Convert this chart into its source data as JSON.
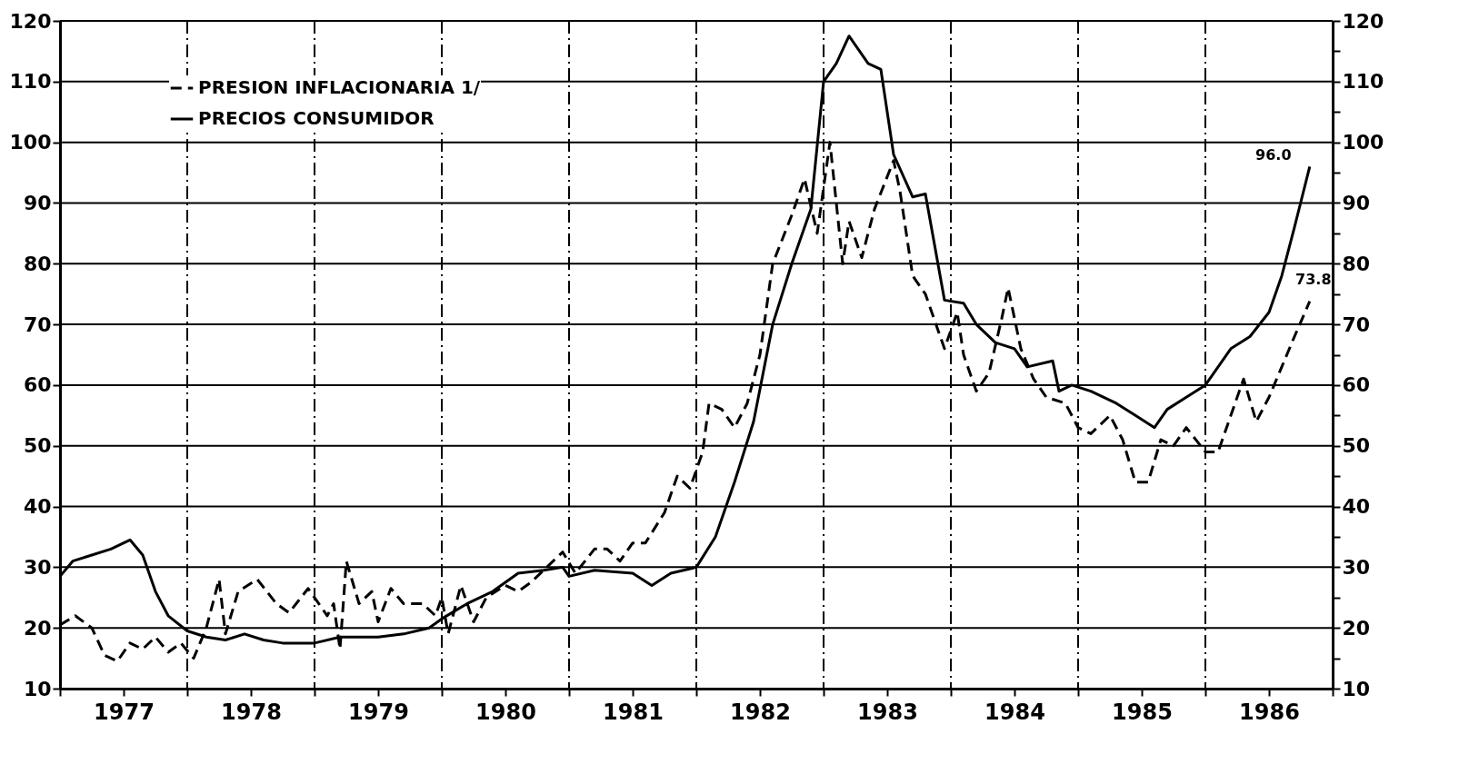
{
  "chart_data": {
    "type": "line",
    "xlim": [
      1977,
      1987
    ],
    "xticks": [
      {
        "value": 1977,
        "label": null
      },
      {
        "value": 1977.5,
        "label": "1977"
      },
      {
        "value": 1978,
        "label": null
      },
      {
        "value": 1978.5,
        "label": "1978"
      },
      {
        "value": 1979,
        "label": null
      },
      {
        "value": 1979.5,
        "label": "1979"
      },
      {
        "value": 1980,
        "label": null
      },
      {
        "value": 1980.5,
        "label": "1980"
      },
      {
        "value": 1981,
        "label": null
      },
      {
        "value": 1981.5,
        "label": "1981"
      },
      {
        "value": 1982,
        "label": null
      },
      {
        "value": 1982.5,
        "label": "1982"
      },
      {
        "value": 1983,
        "label": null
      },
      {
        "value": 1983.5,
        "label": "1983"
      },
      {
        "value": 1984,
        "label": null
      },
      {
        "value": 1984.5,
        "label": "1984"
      },
      {
        "value": 1985,
        "label": null
      },
      {
        "value": 1985.5,
        "label": "1985"
      },
      {
        "value": 1986,
        "label": null
      },
      {
        "value": 1986.5,
        "label": "1986"
      },
      {
        "value": 1987,
        "label": null
      }
    ],
    "ylim": [
      10,
      120
    ],
    "yticks": [
      10,
      {
        "value": 15,
        "label": null
      },
      20,
      {
        "value": 25,
        "label": null
      },
      30,
      {
        "value": 35,
        "label": null
      },
      40,
      {
        "value": 45,
        "label": null
      },
      50,
      {
        "value": 55,
        "label": null
      },
      60,
      {
        "value": 65,
        "label": null
      },
      70,
      {
        "value": 75,
        "label": null
      },
      80,
      {
        "value": 85,
        "label": null
      },
      90,
      {
        "value": 95,
        "label": null
      },
      100,
      {
        "value": 105,
        "label": null
      },
      110,
      {
        "value": 115,
        "label": null
      },
      120
    ],
    "y2lim": [
      10,
      120
    ],
    "y2ticks": [
      10,
      {
        "value": 15,
        "label": null
      },
      20,
      {
        "value": 25,
        "label": null
      },
      30,
      {
        "value": 35,
        "label": null
      },
      40,
      {
        "value": 45,
        "label": null
      },
      50,
      {
        "value": 55,
        "label": null
      },
      60,
      {
        "value": 65,
        "label": null
      },
      70,
      {
        "value": 75,
        "label": null
      },
      80,
      {
        "value": 85,
        "label": null
      },
      90,
      {
        "value": 95,
        "label": null
      },
      100,
      {
        "value": 105,
        "label": null
      },
      110,
      {
        "value": 115,
        "label": null
      },
      120
    ],
    "grid": true,
    "legend": "top left",
    "series": [
      {
        "name": "PRESION INFLACIONARIA 1/",
        "color": "#000000",
        "line_style": "dashed",
        "x": [
          1977.0,
          1977.12,
          1977.25,
          1977.35,
          1977.45,
          1977.55,
          1977.65,
          1977.75,
          1977.85,
          1977.95,
          1978.05,
          1978.15,
          1978.25,
          1978.3,
          1978.4,
          1978.55,
          1978.7,
          1978.8,
          1978.95,
          1979.1,
          1979.15,
          1979.2,
          1979.25,
          1979.35,
          1979.45,
          1979.5,
          1979.6,
          1979.7,
          1979.85,
          1979.95,
          1980.0,
          1980.05,
          1980.15,
          1980.25,
          1980.35,
          1980.5,
          1980.6,
          1980.7,
          1980.95,
          1981.05,
          1981.2,
          1981.3,
          1981.4,
          1981.5,
          1981.6,
          1981.75,
          1981.85,
          1981.95,
          1982.05,
          1982.1,
          1982.2,
          1982.3,
          1982.4,
          1982.5,
          1982.6,
          1982.75,
          1982.85,
          1982.95,
          1983.05,
          1983.15,
          1983.2,
          1983.3,
          1983.4,
          1983.55,
          1983.6,
          1983.7,
          1983.8,
          1983.95,
          1984.05,
          1984.1,
          1984.2,
          1984.3,
          1984.4,
          1984.45,
          1984.55,
          1984.65,
          1984.75,
          1984.9,
          1985.0,
          1985.1,
          1985.25,
          1985.35,
          1985.45,
          1985.55,
          1985.65,
          1985.75,
          1985.85,
          1986.0,
          1986.1,
          1986.2,
          1986.3,
          1986.4,
          1986.5,
          1986.6,
          1986.7,
          1986.82
        ],
        "values": [
          20.5,
          22,
          20,
          15.5,
          14.5,
          17.5,
          16.5,
          18.5,
          16,
          17.5,
          15,
          20,
          28,
          19,
          26,
          28,
          24,
          22.5,
          26.5,
          22,
          24,
          16.5,
          31,
          24,
          26,
          21,
          26.5,
          24,
          24,
          22,
          25,
          19,
          27,
          21,
          25,
          27,
          26,
          27.5,
          32.5,
          29,
          33,
          33,
          31,
          34,
          34,
          39,
          45,
          43,
          49,
          57,
          56,
          53,
          57,
          65,
          80,
          88,
          94,
          85,
          100,
          80,
          87,
          81,
          89,
          97,
          92,
          78,
          75,
          66,
          72,
          65,
          59,
          62,
          71,
          76,
          66,
          61,
          58,
          57,
          53,
          52,
          55,
          51,
          44,
          44,
          51,
          50,
          53,
          49,
          49,
          55,
          61,
          54,
          58,
          63,
          68,
          73.8
        ]
      },
      {
        "name": "PRECIOS CONSUMIDOR",
        "color": "#000000",
        "line_style": "solid",
        "x": [
          1977.0,
          1977.1,
          1977.25,
          1977.4,
          1977.55,
          1977.65,
          1977.75,
          1977.85,
          1978.0,
          1978.15,
          1978.3,
          1978.45,
          1978.6,
          1978.75,
          1979.0,
          1979.2,
          1979.5,
          1979.7,
          1979.9,
          1980.0,
          1980.2,
          1980.4,
          1980.6,
          1980.8,
          1980.95,
          1981.0,
          1981.2,
          1981.5,
          1981.65,
          1981.8,
          1982.0,
          1982.15,
          1982.3,
          1982.45,
          1982.6,
          1982.75,
          1982.9,
          1983.0,
          1983.1,
          1983.2,
          1983.35,
          1983.45,
          1983.55,
          1983.7,
          1983.8,
          1983.95,
          1984.1,
          1984.2,
          1984.35,
          1984.5,
          1984.6,
          1984.8,
          1984.85,
          1984.95,
          1985.1,
          1985.3,
          1985.45,
          1985.6,
          1985.7,
          1985.85,
          1986.0,
          1986.1,
          1986.2,
          1986.35,
          1986.5,
          1986.6,
          1986.7,
          1986.82
        ],
        "values": [
          28.5,
          31,
          32,
          33,
          34.5,
          32,
          26,
          22,
          19.5,
          18.5,
          18,
          19,
          18,
          17.5,
          17.5,
          18.5,
          18.5,
          19,
          20,
          21.5,
          24,
          26,
          29,
          29.5,
          30,
          28.5,
          29.5,
          29,
          27,
          29,
          30,
          35,
          44,
          54,
          70,
          80,
          89,
          110,
          113,
          117.5,
          113,
          112,
          98,
          91,
          91.5,
          74,
          73.5,
          70,
          67,
          66,
          63,
          64,
          59,
          60,
          59,
          57,
          55,
          53,
          56,
          58,
          60,
          63,
          66,
          68,
          72,
          78,
          86,
          96
        ]
      }
    ],
    "annotations": [
      {
        "text": "96.0",
        "x": 1986.82,
        "y": 96
      },
      {
        "text": "73.8",
        "x": 1986.82,
        "y": 73.8
      }
    ]
  }
}
